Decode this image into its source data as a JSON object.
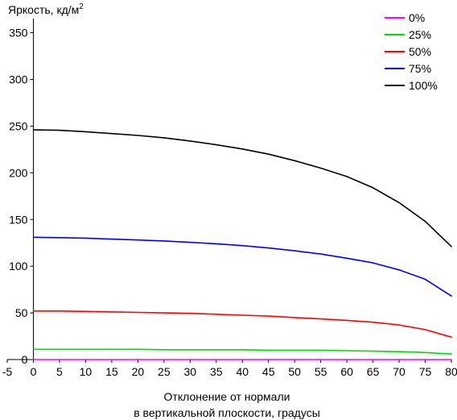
{
  "chart_data": {
    "type": "line",
    "ylabel": "Яркость, кд/м",
    "ylabel_superscript": "2",
    "xlabel_lines": [
      "Отклонение от нормали",
      "в вертикальной плоскости, градусы"
    ],
    "xlim": [
      -5,
      80
    ],
    "ylim": [
      0,
      360
    ],
    "x_ticks": [
      -5,
      0,
      5,
      10,
      15,
      20,
      25,
      30,
      35,
      40,
      45,
      50,
      55,
      60,
      65,
      70,
      75,
      80
    ],
    "y_ticks": [
      0,
      50,
      100,
      150,
      200,
      250,
      300,
      350
    ],
    "grid": false,
    "legend_position": "top-right",
    "x": [
      -5,
      0,
      5,
      10,
      15,
      20,
      25,
      30,
      35,
      40,
      45,
      50,
      55,
      60,
      65,
      70,
      75,
      80
    ],
    "series": [
      {
        "name": "0%",
        "color": "#ff00ff",
        "values": [
          0,
          0,
          0,
          0,
          0,
          0,
          0,
          0,
          0,
          0,
          0,
          0,
          0,
          0,
          0,
          0,
          0,
          0
        ]
      },
      {
        "name": "25%",
        "color": "#00dd00",
        "values": [
          11,
          11,
          11,
          11,
          11,
          11,
          10.5,
          10.5,
          10.5,
          10.5,
          10,
          10,
          10,
          9.5,
          9,
          8.5,
          7.5,
          6
        ]
      },
      {
        "name": "50%",
        "color": "#ff0000",
        "values": [
          52,
          52,
          52,
          51.5,
          51,
          50.5,
          50,
          49.5,
          48.5,
          47.5,
          46.5,
          45,
          43.5,
          42,
          40,
          37,
          32,
          24
        ]
      },
      {
        "name": "75%",
        "color": "#0000ff",
        "values": [
          131,
          131,
          130.5,
          130,
          129,
          128,
          127,
          125.5,
          124,
          122,
          119.5,
          116.5,
          113,
          108.5,
          103.5,
          96,
          86,
          68
        ]
      },
      {
        "name": "100%",
        "color": "#000000",
        "values": [
          246,
          246,
          245.5,
          244,
          242,
          240,
          237.5,
          234,
          230,
          225.5,
          220,
          213,
          205,
          196,
          184,
          168,
          148,
          121
        ]
      }
    ]
  }
}
